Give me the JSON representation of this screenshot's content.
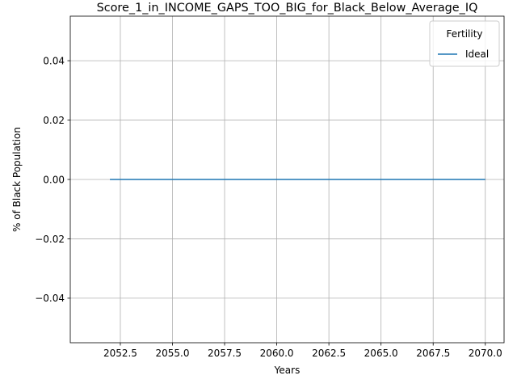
{
  "chart_data": {
    "type": "line",
    "title": "Score_1_in_INCOME_GAPS_TOO_BIG_for_Black_Below_Average_IQ",
    "xlabel": "Years",
    "ylabel": "% of Black Population",
    "xlim": [
      2050.1,
      2070.9
    ],
    "ylim": [
      -0.055,
      0.055
    ],
    "xticks": [
      2052.5,
      2055.0,
      2057.5,
      2060.0,
      2062.5,
      2065.0,
      2067.5,
      2070.0
    ],
    "xtick_labels": [
      "2052.5",
      "2055.0",
      "2057.5",
      "2060.0",
      "2062.5",
      "2065.0",
      "2067.5",
      "2070.0"
    ],
    "yticks": [
      -0.04,
      -0.02,
      0.0,
      0.02,
      0.04
    ],
    "ytick_labels": [
      "−0.04",
      "−0.02",
      "0.00",
      "0.02",
      "0.04"
    ],
    "grid": true,
    "legend": {
      "title": "Fertility",
      "placement": "top-right"
    },
    "series": [
      {
        "name": "Ideal",
        "color": "#1f77b4",
        "x": [
          2052,
          2053,
          2054,
          2055,
          2056,
          2057,
          2058,
          2059,
          2060,
          2061,
          2062,
          2063,
          2064,
          2065,
          2066,
          2067,
          2068,
          2069,
          2070
        ],
        "y": [
          0,
          0,
          0,
          0,
          0,
          0,
          0,
          0,
          0,
          0,
          0,
          0,
          0,
          0,
          0,
          0,
          0,
          0,
          0
        ]
      }
    ]
  }
}
